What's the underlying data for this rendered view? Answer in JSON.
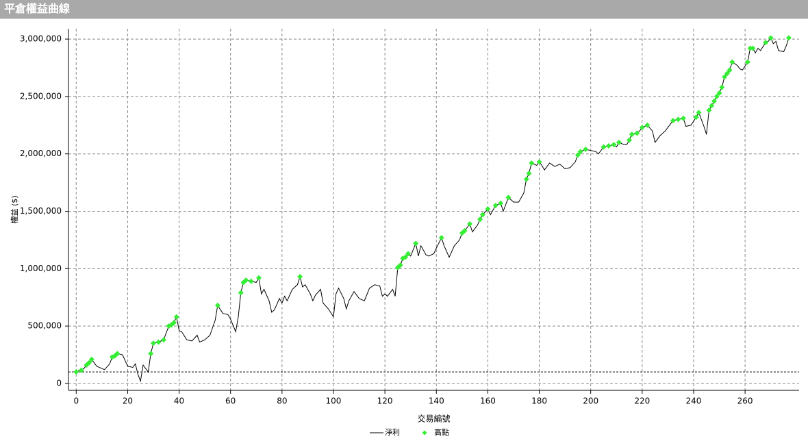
{
  "chart_data": {
    "type": "line",
    "title": "平倉權益曲線",
    "x_label": "交易編號",
    "y_label": "權益 ($)",
    "xlim": [
      -3,
      281
    ],
    "ylim": [
      -60000,
      3090000
    ],
    "xticks": [
      0,
      20,
      40,
      60,
      80,
      100,
      120,
      140,
      160,
      180,
      200,
      220,
      240,
      260
    ],
    "yticks": [
      0,
      {
        "value": 500000,
        "label": "500,000"
      },
      {
        "value": 1000000,
        "label": "1,000,000"
      },
      {
        "value": 1500000,
        "label": "1,500,000"
      },
      {
        "value": 2000000,
        "label": "2,000,000"
      },
      {
        "value": 2500000,
        "label": "2,500,000"
      },
      {
        "value": 3000000,
        "label": "3,000,000"
      }
    ],
    "grid": true,
    "baseline": 100000,
    "series": [
      {
        "name": "淨利",
        "color": "#000000",
        "x": [
          0,
          1,
          2,
          3,
          4,
          5,
          6,
          8,
          11,
          13,
          14,
          15,
          16,
          18,
          20,
          22,
          23,
          24,
          25,
          26,
          28,
          29,
          30,
          32,
          34,
          36,
          37,
          38,
          39,
          40,
          41,
          43,
          45,
          47,
          48,
          50,
          52,
          54,
          55,
          57,
          59,
          60,
          62,
          63,
          64,
          65,
          66,
          68,
          70,
          71,
          72,
          73,
          75,
          76,
          77,
          79,
          80,
          81,
          82,
          84,
          86,
          87,
          88,
          89,
          91,
          92,
          93,
          95,
          96,
          98,
          100,
          101,
          102,
          104,
          105,
          106,
          108,
          110,
          112,
          114,
          116,
          118,
          119,
          120,
          121,
          123,
          124,
          125,
          126,
          127,
          128,
          129,
          130,
          132,
          133,
          134,
          136,
          137,
          139,
          140,
          142,
          143,
          145,
          147,
          149,
          150,
          151,
          153,
          154,
          156,
          157,
          158,
          160,
          161,
          163,
          165,
          166,
          168,
          170,
          172,
          174,
          175,
          176,
          177,
          179,
          180,
          181,
          182,
          184,
          186,
          188,
          190,
          192,
          194,
          195,
          196,
          198,
          200,
          202,
          203,
          205,
          207,
          209,
          210,
          211,
          213,
          214,
          215,
          216,
          218,
          219,
          220,
          222,
          224,
          225,
          227,
          229,
          231,
          232,
          234,
          236,
          237,
          239,
          241,
          242,
          244,
          245,
          246,
          247,
          248,
          249,
          250,
          251,
          252,
          253,
          254,
          255,
          257,
          258,
          259,
          261,
          262,
          263,
          264,
          265,
          266,
          268,
          269,
          270,
          271,
          272,
          273,
          275,
          276,
          277
        ],
        "values": [
          100000,
          110000,
          115000,
          130000,
          160000,
          180000,
          210000,
          150000,
          120000,
          170000,
          230000,
          240000,
          260000,
          250000,
          150000,
          140000,
          170000,
          80000,
          20000,
          160000,
          100000,
          260000,
          350000,
          360000,
          380000,
          500000,
          510000,
          530000,
          580000,
          460000,
          450000,
          380000,
          370000,
          420000,
          360000,
          380000,
          420000,
          550000,
          680000,
          610000,
          600000,
          560000,
          450000,
          580000,
          790000,
          880000,
          900000,
          890000,
          880000,
          920000,
          780000,
          820000,
          720000,
          620000,
          640000,
          740000,
          700000,
          760000,
          720000,
          820000,
          860000,
          930000,
          840000,
          860000,
          780000,
          720000,
          770000,
          820000,
          700000,
          650000,
          580000,
          780000,
          830000,
          740000,
          650000,
          720000,
          800000,
          740000,
          720000,
          830000,
          860000,
          850000,
          760000,
          780000,
          760000,
          820000,
          760000,
          1010000,
          1030000,
          1090000,
          1100000,
          1130000,
          1110000,
          1220000,
          1110000,
          1200000,
          1120000,
          1110000,
          1130000,
          1180000,
          1270000,
          1200000,
          1100000,
          1200000,
          1250000,
          1310000,
          1330000,
          1390000,
          1320000,
          1380000,
          1430000,
          1470000,
          1520000,
          1470000,
          1550000,
          1570000,
          1500000,
          1620000,
          1580000,
          1580000,
          1660000,
          1780000,
          1830000,
          1920000,
          1900000,
          1930000,
          1900000,
          1860000,
          1920000,
          1890000,
          1910000,
          1870000,
          1880000,
          1930000,
          1990000,
          2020000,
          2040000,
          2030000,
          2020000,
          2000000,
          2060000,
          2070000,
          2080000,
          2060000,
          2100000,
          2080000,
          2080000,
          2120000,
          2170000,
          2180000,
          2200000,
          2230000,
          2250000,
          2200000,
          2100000,
          2160000,
          2200000,
          2260000,
          2290000,
          2300000,
          2310000,
          2240000,
          2250000,
          2320000,
          2360000,
          2240000,
          2170000,
          2380000,
          2420000,
          2460000,
          2500000,
          2530000,
          2580000,
          2670000,
          2700000,
          2730000,
          2800000,
          2770000,
          2740000,
          2730000,
          2800000,
          2920000,
          2920000,
          2880000,
          2920000,
          2900000,
          2970000,
          2980000,
          3010000,
          2960000,
          2980000,
          2900000,
          2890000,
          2940000,
          3010000
        ]
      },
      {
        "name": "高點",
        "color": "#33ee33",
        "marker": "diamond",
        "x": [
          0,
          2,
          4,
          5,
          6,
          14,
          15,
          16,
          29,
          30,
          32,
          34,
          36,
          37,
          38,
          39,
          55,
          64,
          65,
          66,
          68,
          71,
          87,
          125,
          126,
          127,
          128,
          129,
          132,
          142,
          150,
          151,
          153,
          157,
          158,
          160,
          163,
          165,
          168,
          175,
          176,
          177,
          180,
          195,
          196,
          198,
          205,
          207,
          209,
          211,
          215,
          216,
          218,
          220,
          222,
          232,
          234,
          236,
          241,
          242,
          246,
          247,
          248,
          249,
          250,
          251,
          252,
          253,
          254,
          255,
          261,
          262,
          263,
          268,
          270,
          277
        ],
        "values": [
          100000,
          115000,
          160000,
          180000,
          210000,
          230000,
          240000,
          260000,
          260000,
          350000,
          360000,
          380000,
          500000,
          510000,
          530000,
          580000,
          680000,
          790000,
          880000,
          900000,
          890000,
          920000,
          930000,
          1010000,
          1030000,
          1090000,
          1100000,
          1130000,
          1220000,
          1270000,
          1310000,
          1330000,
          1390000,
          1430000,
          1470000,
          1520000,
          1550000,
          1570000,
          1620000,
          1780000,
          1830000,
          1920000,
          1930000,
          1990000,
          2020000,
          2040000,
          2060000,
          2070000,
          2080000,
          2100000,
          2120000,
          2170000,
          2180000,
          2230000,
          2250000,
          2290000,
          2300000,
          2310000,
          2320000,
          2360000,
          2380000,
          2420000,
          2460000,
          2500000,
          2530000,
          2580000,
          2670000,
          2700000,
          2730000,
          2800000,
          2800000,
          2920000,
          2920000,
          2970000,
          3010000,
          3010000
        ]
      }
    ]
  }
}
